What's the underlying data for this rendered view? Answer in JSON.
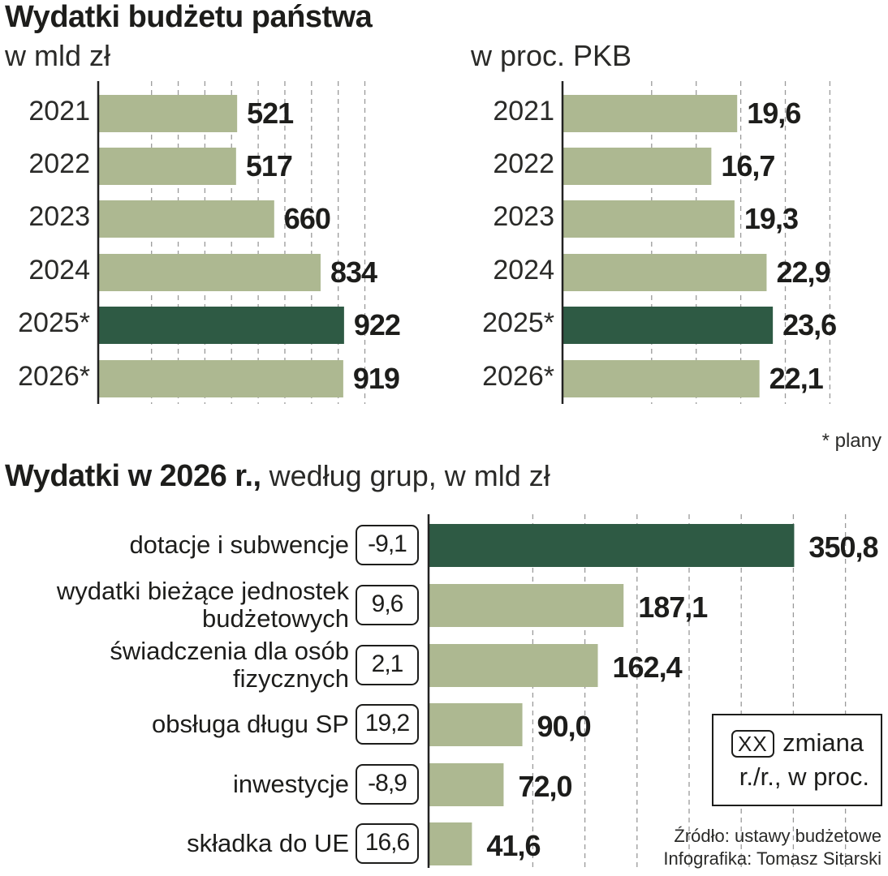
{
  "colors": {
    "bar": "#adb891",
    "highlight": "#2e5a44",
    "grid": "#9a9a9a",
    "axis": "#222222"
  },
  "top_title": "Wydatki budżetu państwa",
  "footnote": "* plany",
  "bottom_title": {
    "bold": "Wydatki w 2026 r.,",
    "light": " według grup, w mld zł"
  },
  "legend": {
    "box": "XX",
    "text_line1": "zmiana",
    "text_line2": "r./r., w proc."
  },
  "source": {
    "line1": "Źródło: ustawy budżetowe",
    "line2": "Infografika: Tomasz Sitarski"
  },
  "chart_data": [
    {
      "type": "bar",
      "orientation": "horizontal",
      "title": "Wydatki budżetu państwa",
      "subtitle": "w mld zł",
      "categories": [
        "2021",
        "2022",
        "2023",
        "2024",
        "2025*",
        "2026*"
      ],
      "values": [
        521,
        517,
        660,
        834,
        922,
        919
      ],
      "value_labels": [
        "521",
        "517",
        "660",
        "834",
        "922",
        "919"
      ],
      "highlight_index": 4,
      "xlim": [
        0,
        1000
      ],
      "grid": true
    },
    {
      "type": "bar",
      "orientation": "horizontal",
      "title": "",
      "subtitle": "w proc. PKB",
      "categories": [
        "2021",
        "2022",
        "2023",
        "2024",
        "2025*",
        "2026*"
      ],
      "values": [
        19.6,
        16.7,
        19.3,
        22.9,
        23.6,
        22.1
      ],
      "value_labels": [
        "19,6",
        "16,7",
        "19,3",
        "22,9",
        "23,6",
        "22,1"
      ],
      "highlight_index": 4,
      "xlim": [
        0,
        30
      ],
      "grid": true
    },
    {
      "type": "bar",
      "orientation": "horizontal",
      "title": "Wydatki w 2026 r., według grup, w mld zł",
      "categories": [
        "dotacje i subwencje",
        "wydatki bieżące jednostek budżetowych",
        "świadczenia dla osób fizycznych",
        "obsługa długu SP",
        "inwestycje",
        "składka do UE"
      ],
      "values": [
        350.8,
        187.1,
        162.4,
        90.0,
        72.0,
        41.6
      ],
      "value_labels": [
        "350,8",
        "187,1",
        "162,4",
        "90,0",
        "72,0",
        "41,6"
      ],
      "changes_yoy_pct": [
        "-9,1",
        "9,6",
        "2,1",
        "19,2",
        "-8,9",
        "16,6"
      ],
      "highlight_index": 0,
      "xlim": [
        0,
        400
      ],
      "grid": true
    }
  ]
}
